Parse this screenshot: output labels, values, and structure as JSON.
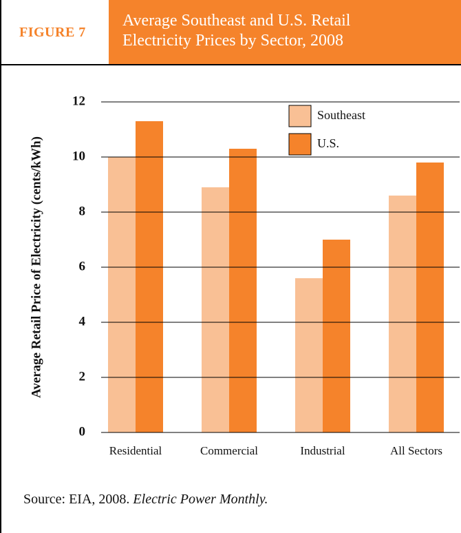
{
  "figure_label": "FIGURE 7",
  "source": {
    "text": "Source: EIA, 2008.",
    "publication": "Electric Power Monthly."
  },
  "chart_data": {
    "type": "bar",
    "title": "Average Southeast and U.S. Retail Electricity Prices by Sector, 2008",
    "y_label": "Average Retail Price of Electricity (cents/kWh)",
    "categories": [
      "Residential",
      "Commercial",
      "Industrial",
      "All Sectors"
    ],
    "series": [
      {
        "name": "Southeast",
        "color": "#f9c095",
        "values": [
          10.0,
          8.9,
          5.6,
          8.6
        ]
      },
      {
        "name": "U.S.",
        "color": "#f5832b",
        "values": [
          11.3,
          10.3,
          7.0,
          9.8
        ]
      }
    ],
    "ylim": [
      0,
      12
    ],
    "yticks": [
      0,
      2,
      4,
      6,
      8,
      10,
      12
    ],
    "grid": true
  }
}
